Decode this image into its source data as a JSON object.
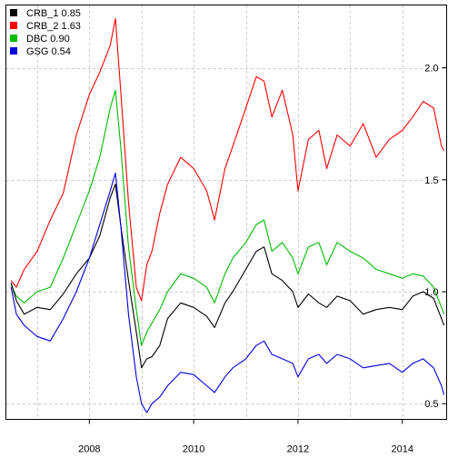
{
  "chart_data": {
    "type": "line",
    "title": "",
    "xlabel": "",
    "ylabel": "",
    "xlim": [
      2006.4,
      2014.85
    ],
    "ylim": [
      0.43,
      2.28
    ],
    "x_ticks": [
      {
        "value": 2008,
        "label": "2008"
      },
      {
        "value": 2010,
        "label": "2010"
      },
      {
        "value": 2012,
        "label": "2012"
      },
      {
        "value": 2014,
        "label": "2014"
      }
    ],
    "y_ticks": [
      {
        "value": 0.5,
        "label": "0.5"
      },
      {
        "value": 1.0,
        "label": "1.0"
      },
      {
        "value": 1.5,
        "label": "1.5"
      },
      {
        "value": 2.0,
        "label": "2.0"
      }
    ],
    "x_grid": [
      2007,
      2008,
      2009,
      2010,
      2011,
      2012,
      2013,
      2014
    ],
    "grid": true,
    "y_axis_side": "right",
    "legend_position": "top-left",
    "series": [
      {
        "name": "CRB_1 0.85",
        "color": "#000000",
        "x": [
          2006.5,
          2006.6,
          2006.75,
          2007.0,
          2007.25,
          2007.5,
          2007.75,
          2008.0,
          2008.2,
          2008.4,
          2008.5,
          2008.6,
          2008.75,
          2008.9,
          2009.0,
          2009.1,
          2009.2,
          2009.35,
          2009.5,
          2009.75,
          2010.0,
          2010.25,
          2010.4,
          2010.6,
          2010.75,
          2011.0,
          2011.2,
          2011.35,
          2011.5,
          2011.7,
          2011.9,
          2012.0,
          2012.2,
          2012.4,
          2012.55,
          2012.75,
          2013.0,
          2013.25,
          2013.5,
          2013.75,
          2014.0,
          2014.2,
          2014.4,
          2014.6,
          2014.75,
          2014.8
        ],
        "values": [
          1.04,
          0.96,
          0.9,
          0.93,
          0.92,
          0.99,
          1.08,
          1.15,
          1.25,
          1.42,
          1.48,
          1.3,
          1.05,
          0.82,
          0.66,
          0.7,
          0.71,
          0.76,
          0.88,
          0.95,
          0.93,
          0.89,
          0.84,
          0.95,
          1.0,
          1.1,
          1.18,
          1.2,
          1.08,
          1.05,
          1.0,
          0.93,
          0.99,
          0.95,
          0.93,
          0.98,
          0.96,
          0.9,
          0.92,
          0.93,
          0.92,
          0.98,
          1.0,
          0.97,
          0.88,
          0.85
        ]
      },
      {
        "name": "CRB_2 1.63",
        "color": "#ff0000",
        "x": [
          2006.5,
          2006.6,
          2006.75,
          2007.0,
          2007.25,
          2007.5,
          2007.75,
          2008.0,
          2008.2,
          2008.4,
          2008.5,
          2008.6,
          2008.75,
          2008.9,
          2009.0,
          2009.1,
          2009.2,
          2009.35,
          2009.5,
          2009.75,
          2010.0,
          2010.25,
          2010.4,
          2010.6,
          2010.75,
          2011.0,
          2011.2,
          2011.35,
          2011.5,
          2011.7,
          2011.9,
          2012.0,
          2012.2,
          2012.4,
          2012.55,
          2012.75,
          2013.0,
          2013.25,
          2013.5,
          2013.75,
          2014.0,
          2014.2,
          2014.4,
          2014.6,
          2014.75,
          2014.8
        ],
        "values": [
          1.05,
          1.02,
          1.1,
          1.18,
          1.32,
          1.44,
          1.7,
          1.88,
          1.98,
          2.1,
          2.22,
          1.9,
          1.4,
          1.02,
          0.96,
          1.12,
          1.18,
          1.35,
          1.48,
          1.6,
          1.55,
          1.45,
          1.32,
          1.55,
          1.65,
          1.82,
          1.96,
          1.94,
          1.78,
          1.9,
          1.7,
          1.45,
          1.68,
          1.72,
          1.55,
          1.7,
          1.65,
          1.75,
          1.6,
          1.68,
          1.72,
          1.78,
          1.85,
          1.82,
          1.65,
          1.63
        ]
      },
      {
        "name": "DBC 0.90",
        "color": "#00bb00",
        "x": [
          2006.5,
          2006.6,
          2006.75,
          2007.0,
          2007.25,
          2007.5,
          2007.75,
          2008.0,
          2008.2,
          2008.4,
          2008.5,
          2008.6,
          2008.75,
          2008.9,
          2009.0,
          2009.1,
          2009.2,
          2009.35,
          2009.5,
          2009.75,
          2010.0,
          2010.25,
          2010.4,
          2010.6,
          2010.75,
          2011.0,
          2011.2,
          2011.35,
          2011.5,
          2011.7,
          2011.9,
          2012.0,
          2012.2,
          2012.4,
          2012.55,
          2012.75,
          2013.0,
          2013.25,
          2013.5,
          2013.75,
          2014.0,
          2014.2,
          2014.4,
          2014.6,
          2014.75,
          2014.8
        ],
        "values": [
          1.03,
          0.98,
          0.95,
          1.0,
          1.02,
          1.15,
          1.3,
          1.45,
          1.6,
          1.82,
          1.9,
          1.65,
          1.2,
          0.92,
          0.76,
          0.82,
          0.86,
          0.92,
          1.0,
          1.08,
          1.06,
          1.02,
          0.95,
          1.08,
          1.15,
          1.22,
          1.3,
          1.32,
          1.18,
          1.22,
          1.15,
          1.08,
          1.2,
          1.22,
          1.12,
          1.22,
          1.18,
          1.15,
          1.1,
          1.08,
          1.06,
          1.08,
          1.07,
          1.02,
          0.93,
          0.9
        ]
      },
      {
        "name": "GSG 0.54",
        "color": "#0000dd",
        "x": [
          2006.5,
          2006.6,
          2006.75,
          2007.0,
          2007.25,
          2007.5,
          2007.75,
          2008.0,
          2008.2,
          2008.4,
          2008.5,
          2008.6,
          2008.75,
          2008.9,
          2009.0,
          2009.1,
          2009.2,
          2009.35,
          2009.5,
          2009.75,
          2010.0,
          2010.25,
          2010.4,
          2010.6,
          2010.75,
          2011.0,
          2011.2,
          2011.35,
          2011.5,
          2011.7,
          2011.9,
          2012.0,
          2012.2,
          2012.4,
          2012.55,
          2012.75,
          2013.0,
          2013.25,
          2013.5,
          2013.75,
          2014.0,
          2014.2,
          2014.4,
          2014.6,
          2014.75,
          2014.8
        ],
        "values": [
          1.02,
          0.9,
          0.85,
          0.8,
          0.78,
          0.88,
          1.0,
          1.15,
          1.3,
          1.45,
          1.53,
          1.3,
          0.9,
          0.62,
          0.5,
          0.46,
          0.5,
          0.53,
          0.58,
          0.64,
          0.63,
          0.58,
          0.55,
          0.62,
          0.66,
          0.7,
          0.76,
          0.78,
          0.72,
          0.7,
          0.68,
          0.62,
          0.7,
          0.72,
          0.68,
          0.72,
          0.7,
          0.66,
          0.67,
          0.68,
          0.64,
          0.68,
          0.7,
          0.66,
          0.58,
          0.54
        ]
      }
    ]
  }
}
